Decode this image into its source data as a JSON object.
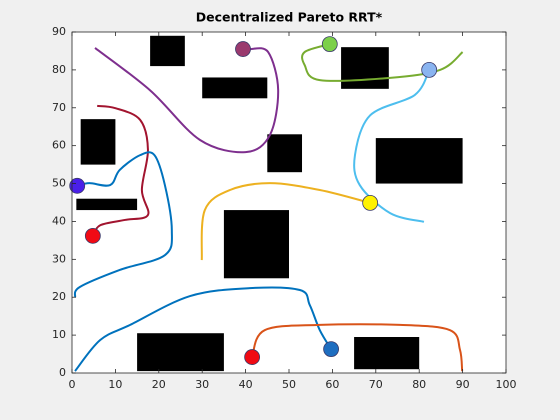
{
  "chart_data": {
    "type": "path-plot",
    "title": "Decentralized Pareto RRT*",
    "xlim": [
      0,
      100
    ],
    "ylim": [
      0,
      90
    ],
    "xticks": [
      0,
      10,
      20,
      30,
      40,
      50,
      60,
      70,
      80,
      90,
      100
    ],
    "yticks": [
      0,
      10,
      20,
      30,
      40,
      50,
      60,
      70,
      80,
      90
    ],
    "obstacle_color": "#000000",
    "obstacles": [
      {
        "x": 18,
        "y": 81,
        "w": 8,
        "h": 8
      },
      {
        "x": 30,
        "y": 72.5,
        "w": 15,
        "h": 5.5
      },
      {
        "x": 2,
        "y": 55,
        "w": 8,
        "h": 12
      },
      {
        "x": 62,
        "y": 75,
        "w": 11,
        "h": 11
      },
      {
        "x": 45,
        "y": 53,
        "w": 8,
        "h": 10
      },
      {
        "x": 70,
        "y": 50,
        "w": 20,
        "h": 12
      },
      {
        "x": 1,
        "y": 43,
        "w": 14,
        "h": 3
      },
      {
        "x": 35,
        "y": 25,
        "w": 15,
        "h": 18
      },
      {
        "x": 15,
        "y": 0.5,
        "w": 20,
        "h": 10
      },
      {
        "x": 65,
        "y": 1,
        "w": 15,
        "h": 8.5
      }
    ],
    "series": [
      {
        "color": "#7E2F8E",
        "x": [
          5.3,
          18,
          29.5,
          40,
          45.6,
          47.5,
          45.2,
          41
        ],
        "y": [
          85.8,
          74.6,
          61.5,
          58.3,
          62.8,
          74.7,
          84.7,
          85.5
        ]
      },
      {
        "color": "#77AC30",
        "x": [
          90,
          84.8,
          73.3,
          57.1,
          53.6,
          53.6,
          59.4
        ],
        "y": [
          84.7,
          80,
          77.9,
          77.3,
          81.3,
          84.7,
          86.8
        ]
      },
      {
        "color": "#4DBEEE",
        "x": [
          82.3,
          79,
          68.7,
          65.2,
          66.3,
          73.3,
          81.1
        ],
        "y": [
          80,
          73.4,
          68,
          57.5,
          49.6,
          42.2,
          39.9
        ]
      },
      {
        "color": "#EDB120",
        "x": [
          29.9,
          30.6,
          36.4,
          45.6,
          57.1,
          68.7
        ],
        "y": [
          29.8,
          43,
          48.3,
          50.1,
          48.3,
          44.9
        ]
      },
      {
        "color": "#A2142F",
        "x": [
          5.8,
          10,
          15.7,
          17.5,
          16.1,
          17.5,
          12.2,
          6.5,
          4.8
        ],
        "y": [
          70.5,
          69.9,
          66.8,
          58.9,
          48.3,
          41.7,
          40.4,
          39,
          36.2
        ]
      },
      {
        "color": "#0072BD",
        "x": [
          1.2,
          4,
          8.8,
          11,
          15.7,
          19,
          21.4,
          23,
          21.4,
          11,
          1.8,
          0.7
        ],
        "y": [
          49.4,
          50.1,
          49.6,
          53.6,
          57.5,
          57.5,
          49.6,
          37.7,
          31.1,
          27.2,
          22.7,
          20
        ]
      },
      {
        "color": "#0072BD",
        "x": [
          0.7,
          6.5,
          13.4,
          27.2,
          41,
          52.5,
          54.8,
          57.1,
          59.7
        ],
        "y": [
          0.5,
          8.7,
          12.7,
          20.3,
          22.4,
          21.9,
          17.9,
          11.3,
          6.3
        ]
      },
      {
        "color": "#D95319",
        "x": [
          41.5,
          44.4,
          57.1,
          75.6,
          87.1,
          89.4,
          89.9
        ],
        "y": [
          4.2,
          11.3,
          12.7,
          12.7,
          11.3,
          6.1,
          0.5
        ]
      }
    ],
    "markers": [
      {
        "x": 39.4,
        "y": 85.5,
        "color": "#9A3A6E"
      },
      {
        "x": 59.4,
        "y": 86.8,
        "color": "#7CD04A"
      },
      {
        "x": 82.3,
        "y": 80,
        "color": "#8AB4F0"
      },
      {
        "x": 68.7,
        "y": 44.9,
        "color": "#FFF200"
      },
      {
        "x": 1.2,
        "y": 49.4,
        "color": "#4A1FE8"
      },
      {
        "x": 4.8,
        "y": 36.2,
        "color": "#F00A14"
      },
      {
        "x": 41.5,
        "y": 4.2,
        "color": "#F00A14"
      },
      {
        "x": 59.7,
        "y": 6.3,
        "color": "#1E6EC0"
      }
    ]
  }
}
